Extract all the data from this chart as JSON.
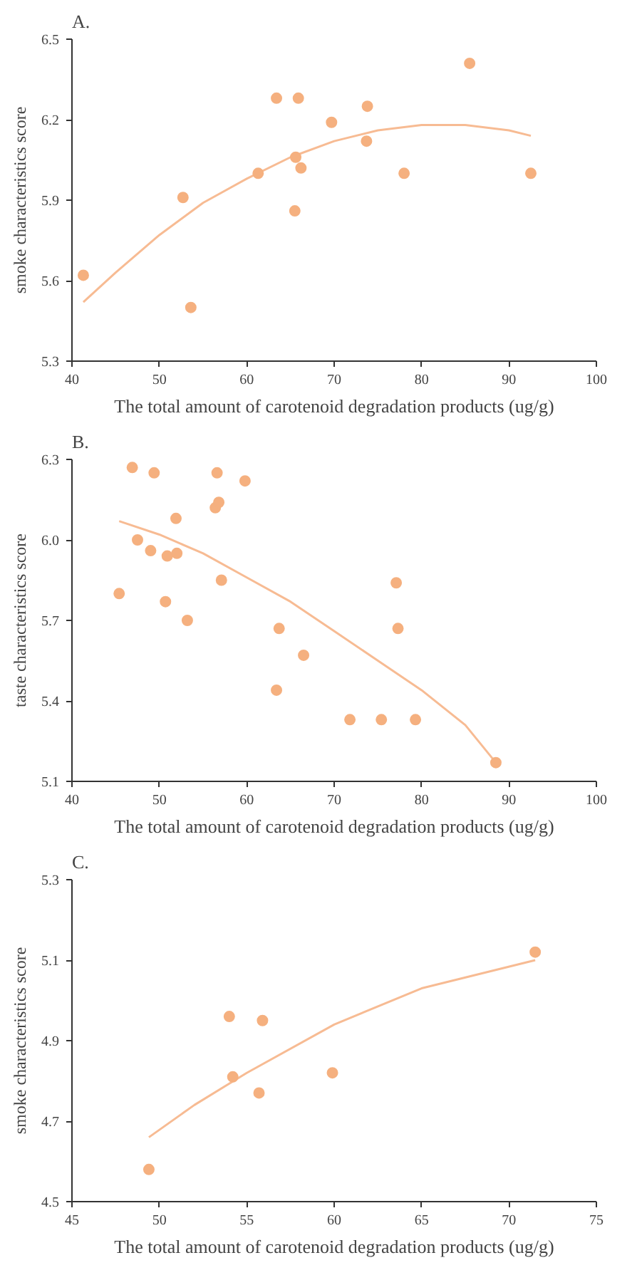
{
  "chart_data": [
    {
      "type": "scatter",
      "title": "A.",
      "xlabel": "The total amount of carotenoid degradation products (ug/g)",
      "ylabel": "smoke characteristics score",
      "xlim": [
        40,
        100
      ],
      "xticks": [
        40,
        50,
        60,
        70,
        80,
        90,
        100
      ],
      "ylim": [
        5.3,
        6.5
      ],
      "yticks": [
        5.3,
        5.6,
        5.9,
        6.2,
        6.5
      ],
      "series": [
        {
          "marker": "circle",
          "color": "#f5b07f",
          "x": [
            41.3,
            52.7,
            53.6,
            61.3,
            63.4,
            65.9,
            65.6,
            65.5,
            66.2,
            69.7,
            73.8,
            73.7,
            78.0,
            85.5,
            92.5
          ],
          "values": [
            5.62,
            5.91,
            5.5,
            6.0,
            6.28,
            6.28,
            6.06,
            5.86,
            6.02,
            6.19,
            6.25,
            6.12,
            6.0,
            6.41,
            6.0
          ]
        },
        {
          "type": "line",
          "marker": "none",
          "color": "#f7bb93",
          "x": [
            41.3,
            45,
            50,
            55,
            60,
            65,
            70,
            75,
            80,
            85,
            90,
            92.5
          ],
          "values": [
            5.52,
            5.63,
            5.77,
            5.89,
            5.98,
            6.06,
            6.12,
            6.16,
            6.18,
            6.18,
            6.16,
            6.14
          ]
        }
      ]
    },
    {
      "type": "scatter",
      "title": "B.",
      "xlabel": "The total amount of carotenoid degradation products (ug/g)",
      "ylabel": "taste characteristics score",
      "xlim": [
        40,
        100
      ],
      "xticks": [
        40,
        50,
        60,
        70,
        80,
        90,
        100
      ],
      "ylim": [
        5.1,
        6.3
      ],
      "yticks": [
        5.1,
        5.4,
        5.7,
        {
          "value": 6,
          "label": "6.0"
        },
        6.3
      ],
      "series": [
        {
          "marker": "circle",
          "color": "#f5b07f",
          "x": [
            45.4,
            46.9,
            47.5,
            49.0,
            49.4,
            50.7,
            50.9,
            51.9,
            52.0,
            53.2,
            56.4,
            56.6,
            56.8,
            57.1,
            59.8,
            63.4,
            63.7,
            66.5,
            71.8,
            75.4,
            77.1,
            77.3,
            79.3,
            88.5
          ],
          "values": [
            5.8,
            6.27,
            6.0,
            5.96,
            6.25,
            5.77,
            5.94,
            6.08,
            5.95,
            5.7,
            6.12,
            6.25,
            6.14,
            5.85,
            6.22,
            5.44,
            5.67,
            5.57,
            5.33,
            5.33,
            5.84,
            5.67,
            5.33,
            5.17
          ]
        },
        {
          "type": "line",
          "marker": "none",
          "color": "#f7bb93",
          "x": [
            45.4,
            50,
            55,
            60,
            65,
            70,
            75,
            80,
            85,
            88.5
          ],
          "values": [
            6.07,
            6.02,
            5.95,
            5.86,
            5.77,
            5.66,
            5.55,
            5.44,
            5.31,
            5.17
          ]
        }
      ]
    },
    {
      "type": "scatter",
      "title": "C.",
      "xlabel": "The total amount of carotenoid degradation products (ug/g)",
      "ylabel": "smoke characteristics score",
      "xlim": [
        45,
        75
      ],
      "xticks": [
        45,
        50,
        55,
        60,
        65,
        70,
        75
      ],
      "ylim": [
        4.5,
        5.3
      ],
      "yticks": [
        4.5,
        4.7,
        4.9,
        5.1,
        5.3
      ],
      "series": [
        {
          "marker": "circle",
          "color": "#f5b07f",
          "x": [
            49.4,
            54.0,
            54.2,
            55.7,
            55.9,
            59.9,
            71.5
          ],
          "values": [
            4.58,
            4.96,
            4.81,
            4.77,
            4.95,
            4.82,
            5.12
          ]
        },
        {
          "type": "line",
          "marker": "none",
          "color": "#f7bb93",
          "x": [
            49.4,
            52,
            55,
            60,
            65,
            71.5
          ],
          "values": [
            4.66,
            4.74,
            4.82,
            4.94,
            5.03,
            5.1
          ]
        }
      ]
    }
  ]
}
